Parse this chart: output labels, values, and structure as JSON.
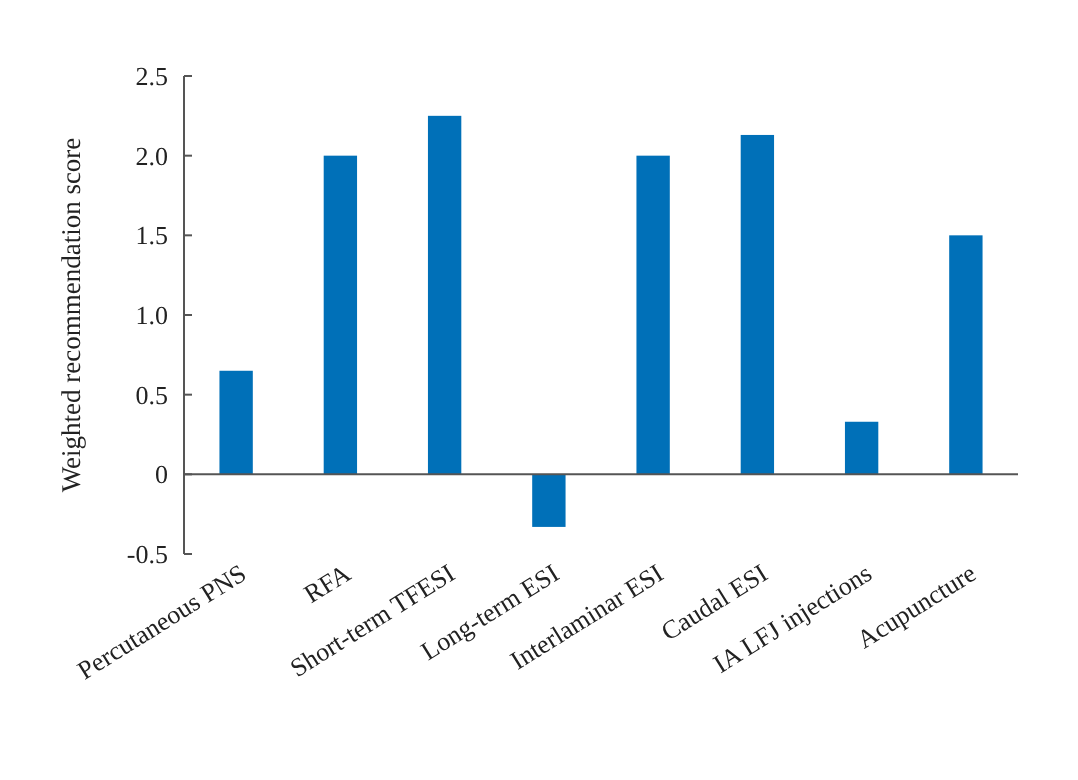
{
  "chart_data": {
    "type": "bar",
    "ylabel": "Weighted recommendation score",
    "categories": [
      "Percutaneous PNS",
      "RFA",
      "Short-term TFESI",
      "Long-term ESI",
      "Interlaminar ESI",
      "Caudal ESI",
      "IA LFJ injections",
      "Acupuncture"
    ],
    "values": [
      0.65,
      2.0,
      2.25,
      -0.33,
      2.0,
      2.13,
      0.33,
      1.5
    ],
    "color": "#0070b8",
    "ylim": [
      -0.5,
      2.5
    ],
    "yticks": [
      -0.5,
      0,
      0.5,
      {
        "value": 1,
        "label": "1.0"
      },
      1.5,
      {
        "value": 2,
        "label": "2.0"
      },
      2.5
    ]
  }
}
